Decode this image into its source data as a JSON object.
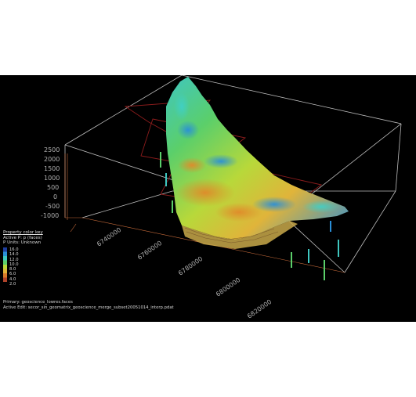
{
  "viewport": {
    "background": "#000000",
    "box_line_color": "#bdbdbd",
    "grid_line_color": "#c66a3a",
    "section_line_color": "#8c1c1c"
  },
  "y_axis": {
    "tick_labels": [
      "2500",
      "2000",
      "1500",
      "1000",
      "500",
      "0",
      "-500",
      "-1000"
    ]
  },
  "x_axis": {
    "tick_labels": [
      "6740000",
      "6760000",
      "6780000",
      "6800000",
      "6820000"
    ]
  },
  "legend": {
    "title": "Property color key",
    "active_property": "Active P:   p  (faces)",
    "units": "P Units:  Unknown",
    "color_stops": [
      "16.0",
      "14.0",
      "12.0",
      "10.0",
      "8.0",
      "6.0",
      "4.0",
      "2.0"
    ],
    "colors": [
      "#1f3fa0",
      "#2a8fd8",
      "#3fc7c0",
      "#5bcf6a",
      "#b8d83a",
      "#e0b43a",
      "#d87a2a",
      "#b0432a"
    ]
  },
  "footer": {
    "primary": "Primary:  geoscience_lowres.faces",
    "active_edit": "Active Edit:  secor_sin_geomatrix_geoscience_merge_subset20051014_interp.pdat"
  }
}
